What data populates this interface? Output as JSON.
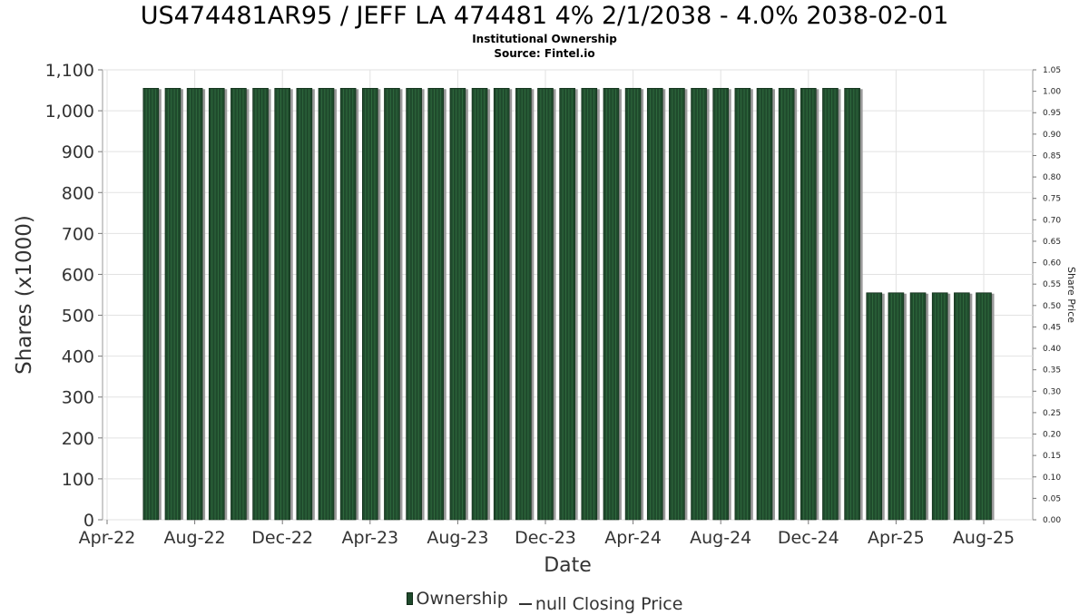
{
  "header": {
    "title": "US474481AR95 / JEFF LA 474481 4% 2/1/2038 - 4.0% 2038-02-01",
    "subtitle_1": "Institutional Ownership",
    "subtitle_2": "Source: Fintel.io"
  },
  "legend": {
    "ownership_label": "Ownership",
    "price_label": "null Closing Price"
  },
  "chart_data": {
    "type": "bar",
    "xlabel": "Date",
    "ylabel": "Shares (x1000)",
    "y2label": "Share Price",
    "x_tick_labels": [
      "Apr-22",
      "Aug-22",
      "Dec-22",
      "Apr-23",
      "Aug-23",
      "Dec-23",
      "Apr-24",
      "Aug-24",
      "Dec-24",
      "Apr-25",
      "Aug-25"
    ],
    "y_tick_labels": [
      "0",
      "100",
      "200",
      "300",
      "400",
      "500",
      "600",
      "700",
      "800",
      "900",
      "1,000",
      "1,100"
    ],
    "y2_tick_labels": [
      "0.00",
      "0.05",
      "0.10",
      "0.15",
      "0.20",
      "0.25",
      "0.30",
      "0.35",
      "0.40",
      "0.45",
      "0.50",
      "0.55",
      "0.60",
      "0.65",
      "0.70",
      "0.75",
      "0.80",
      "0.85",
      "0.90",
      "0.95",
      "1.00",
      "1.05"
    ],
    "ylim": [
      0,
      1100
    ],
    "y2lim": [
      0,
      1.05
    ],
    "grid": true,
    "legend_position": "bottom",
    "colors": {
      "bar": "#1f4a2c",
      "bar_stripe": "#2f6a3e",
      "bar_shadow": "#9a9a9a",
      "grid": "#e2e2e2"
    },
    "series": [
      {
        "name": "Ownership",
        "x": [
          "2022-06",
          "2022-07",
          "2022-08",
          "2022-09",
          "2022-10",
          "2022-11",
          "2022-12",
          "2023-01",
          "2023-02",
          "2023-03",
          "2023-04",
          "2023-05",
          "2023-06",
          "2023-07",
          "2023-08",
          "2023-09",
          "2023-10",
          "2023-11",
          "2023-12",
          "2024-01",
          "2024-02",
          "2024-03",
          "2024-04",
          "2024-05",
          "2024-06",
          "2024-07",
          "2024-08",
          "2024-09",
          "2024-10",
          "2024-11",
          "2024-12",
          "2025-01",
          "2025-02",
          "2025-03",
          "2025-04",
          "2025-05",
          "2025-06",
          "2025-07",
          "2025-08"
        ],
        "values": [
          1055,
          1055,
          1055,
          1055,
          1055,
          1055,
          1055,
          1055,
          1055,
          1055,
          1055,
          1055,
          1055,
          1055,
          1055,
          1055,
          1055,
          1055,
          1055,
          1055,
          1055,
          1055,
          1055,
          1055,
          1055,
          1055,
          1055,
          1055,
          1055,
          1055,
          1055,
          1055,
          1055,
          555,
          555,
          555,
          555,
          555,
          555
        ]
      }
    ]
  }
}
